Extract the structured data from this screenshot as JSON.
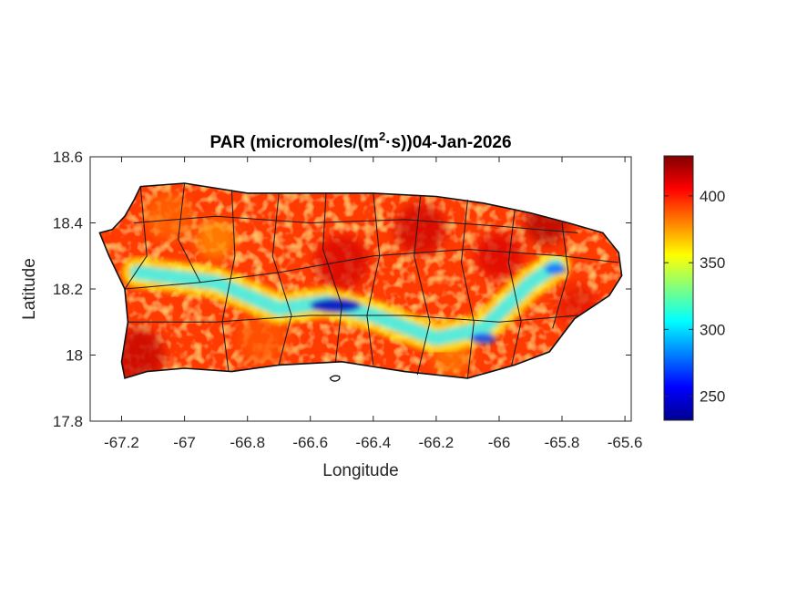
{
  "title": {
    "prefix": "PAR (micromoles/(m",
    "superscript": "2",
    "suffix": "·s))04-Jan-2026"
  },
  "chart_data": {
    "type": "heatmap",
    "xlabel": "Longitude",
    "ylabel": "Latitude",
    "xlim": [
      -67.3,
      -65.58
    ],
    "ylim": [
      17.8,
      18.6
    ],
    "x_ticks": [
      {
        "value": -67.2,
        "label": "-67.2"
      },
      {
        "value": -67.0,
        "label": "-67"
      },
      {
        "value": -66.8,
        "label": "-66.8"
      },
      {
        "value": -66.6,
        "label": "-66.6"
      },
      {
        "value": -66.4,
        "label": "-66.4"
      },
      {
        "value": -66.2,
        "label": "-66.2"
      },
      {
        "value": -66.0,
        "label": "-66"
      },
      {
        "value": -65.8,
        "label": "-65.8"
      },
      {
        "value": -65.6,
        "label": "-65.6"
      }
    ],
    "y_ticks": [
      {
        "value": 17.8,
        "label": "17.8"
      },
      {
        "value": 18.0,
        "label": "18"
      },
      {
        "value": 18.2,
        "label": "18.2"
      },
      {
        "value": 18.4,
        "label": "18.4"
      },
      {
        "value": 18.6,
        "label": "18.6"
      }
    ],
    "colorbar": {
      "colormap": "jet",
      "range": [
        232,
        430
      ],
      "ticks": [
        {
          "value": 250,
          "label": "250"
        },
        {
          "value": 300,
          "label": "300"
        },
        {
          "value": 350,
          "label": "350"
        },
        {
          "value": 400,
          "label": "400"
        }
      ]
    },
    "grid": false,
    "island_outline": [
      [
        -67.27,
        18.37
      ],
      [
        -67.23,
        18.38
      ],
      [
        -67.19,
        18.42
      ],
      [
        -67.16,
        18.47
      ],
      [
        -67.14,
        18.51
      ],
      [
        -67.0,
        18.52
      ],
      [
        -66.8,
        18.49
      ],
      [
        -66.6,
        18.49
      ],
      [
        -66.4,
        18.49
      ],
      [
        -66.2,
        18.48
      ],
      [
        -66.05,
        18.46
      ],
      [
        -65.9,
        18.43
      ],
      [
        -65.78,
        18.4
      ],
      [
        -65.67,
        18.37
      ],
      [
        -65.62,
        18.31
      ],
      [
        -65.61,
        18.24
      ],
      [
        -65.65,
        18.18
      ],
      [
        -65.76,
        18.11
      ],
      [
        -65.84,
        18.01
      ],
      [
        -65.95,
        17.97
      ],
      [
        -66.1,
        17.93
      ],
      [
        -66.3,
        17.95
      ],
      [
        -66.5,
        17.98
      ],
      [
        -66.7,
        17.97
      ],
      [
        -66.85,
        17.95
      ],
      [
        -67.0,
        17.96
      ],
      [
        -67.12,
        17.95
      ],
      [
        -67.19,
        17.93
      ],
      [
        -67.2,
        17.98
      ],
      [
        -67.18,
        18.1
      ],
      [
        -67.19,
        18.2
      ],
      [
        -67.24,
        18.3
      ],
      [
        -67.27,
        18.37
      ]
    ],
    "low_par_band": [
      [
        -67.15,
        18.25
      ],
      [
        -66.9,
        18.22
      ],
      [
        -66.7,
        18.14
      ],
      [
        -66.55,
        18.16
      ],
      [
        -66.4,
        18.12
      ],
      [
        -66.2,
        18.05
      ],
      [
        -66.05,
        18.08
      ],
      [
        -65.9,
        18.22
      ],
      [
        -65.82,
        18.27
      ]
    ],
    "minimum_region": {
      "lon": -66.52,
      "lat": 18.15,
      "value": 240
    }
  }
}
